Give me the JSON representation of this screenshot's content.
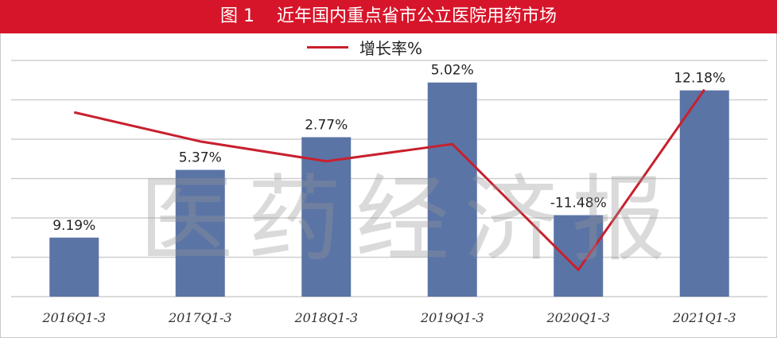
{
  "chart_data": {
    "type": "bar",
    "title": "图 1    近年国内重点省市公立医院用药市场",
    "categories": [
      "2016Q1-3",
      "2017Q1-3",
      "2018Q1-3",
      "2019Q1-3",
      "2020Q1-3",
      "2021Q1-3"
    ],
    "bar_series": {
      "values": [
        15.0,
        32.2,
        40.5,
        54.4,
        20.7,
        52.4
      ]
    },
    "line_series": {
      "name": "增长率%",
      "values": [
        9.19,
        5.37,
        2.77,
        5.02,
        -11.48,
        12.18
      ],
      "labels": [
        "9.19%",
        "5.37%",
        "2.77%",
        "5.02%",
        "-11.48%",
        "12.18%"
      ]
    },
    "line_ylim": [
      -15,
      16
    ],
    "ylim": [
      0,
      60
    ],
    "grid": true,
    "legend_position": "top-center",
    "colors": {
      "title_bg": "#d7152a",
      "bar": "#5b74a6",
      "line": "#c8202e",
      "grid": "#cfcfcf"
    }
  },
  "watermark": "医药经济报"
}
